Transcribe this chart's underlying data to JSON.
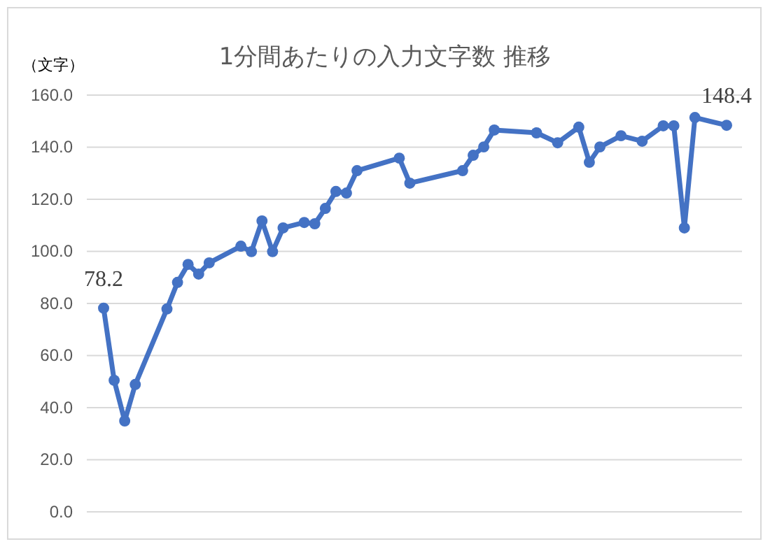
{
  "chart_data": {
    "type": "line",
    "title": "1分間あたりの入力文字数  推移",
    "ylabel": "（文字）",
    "categories": [
      null,
      null,
      null,
      null,
      null,
      null,
      null,
      null,
      null,
      null,
      null,
      null,
      null,
      null,
      null,
      null,
      null,
      null,
      null,
      null,
      null,
      null,
      null,
      null,
      null,
      null,
      null,
      null,
      null,
      null,
      null,
      null,
      null,
      null,
      null,
      null,
      null,
      null,
      null,
      null,
      null,
      null,
      null,
      null,
      null,
      null,
      null,
      null,
      null,
      null,
      null,
      null,
      null,
      null,
      null,
      null,
      null,
      null,
      null,
      null
    ],
    "series": [
      {
        "color": "#4472c4",
        "values": [
          78.2,
          50.5,
          34.9,
          48.9,
          null,
          null,
          77.9,
          88.1,
          95.0,
          91.3,
          95.6,
          null,
          null,
          102.0,
          99.9,
          111.7,
          99.9,
          109.0,
          null,
          111.1,
          110.6,
          116.5,
          123.0,
          122.4,
          131.0,
          null,
          null,
          null,
          135.8,
          126.2,
          null,
          null,
          null,
          null,
          131.0,
          136.9,
          140.1,
          146.6,
          null,
          null,
          null,
          145.5,
          null,
          141.7,
          null,
          147.7,
          134.2,
          140.1,
          null,
          144.4,
          null,
          142.3,
          null,
          148.2,
          148.2,
          109.0,
          151.4,
          null,
          null,
          148.4
        ],
        "value_labels": [
          "78.2",
          null,
          null,
          null,
          null,
          null,
          null,
          null,
          null,
          null,
          null,
          null,
          null,
          null,
          null,
          null,
          null,
          null,
          null,
          null,
          null,
          null,
          null,
          null,
          null,
          null,
          null,
          null,
          null,
          null,
          null,
          null,
          null,
          null,
          null,
          null,
          null,
          null,
          null,
          null,
          null,
          null,
          null,
          null,
          null,
          null,
          null,
          null,
          null,
          null,
          null,
          null,
          null,
          null,
          null,
          null,
          null,
          null,
          null,
          "148.4"
        ]
      }
    ],
    "ylim": [
      0,
      160
    ],
    "yticks": [
      {
        "value": 0,
        "label": "0.0"
      },
      {
        "value": 20,
        "label": "20.0"
      },
      {
        "value": 40,
        "label": "40.0"
      },
      {
        "value": 60,
        "label": "60.0"
      },
      {
        "value": 80,
        "label": "80.0"
      },
      {
        "value": 100,
        "label": "100.0"
      },
      {
        "value": 120,
        "label": "120.0"
      },
      {
        "value": 140,
        "label": "140.0"
      },
      {
        "value": 160,
        "label": "160.0"
      }
    ],
    "grid": "y",
    "marker": "circle",
    "line_style": "solid",
    "tick_labels": "y"
  }
}
